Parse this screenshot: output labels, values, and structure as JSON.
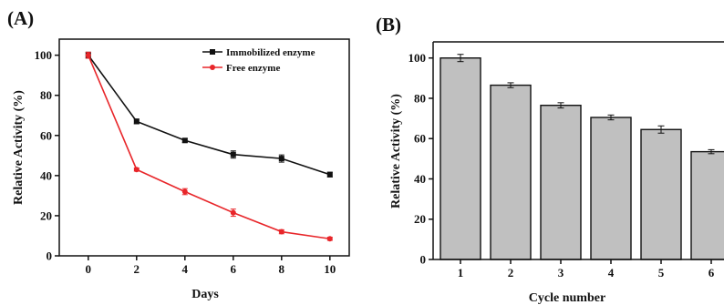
{
  "chart_data": [
    {
      "panel_label": "(A)",
      "type": "line",
      "xlabel": "Days",
      "ylabel": "Relative Activity (%)",
      "xlim": [
        -1.2,
        10.8
      ],
      "ylim": [
        0,
        108
      ],
      "xticks": [
        0,
        2,
        4,
        6,
        8,
        10
      ],
      "yticks": [
        0,
        20,
        40,
        60,
        80,
        100
      ],
      "legend_position": "top-right",
      "x": [
        0,
        2,
        4,
        6,
        8,
        10
      ],
      "series": [
        {
          "name": "Immobilized enzyme",
          "color": "#111111",
          "marker": "square",
          "values": [
            100,
            67,
            57.5,
            50.5,
            48.5,
            40.5
          ],
          "errors": [
            1.5,
            1.2,
            1.0,
            1.8,
            1.8,
            1.2
          ]
        },
        {
          "name": "Free enzyme",
          "color": "#e8262a",
          "marker": "circle",
          "values": [
            100,
            43,
            32,
            21.5,
            12,
            8.5
          ],
          "errors": [
            1.5,
            0.8,
            1.5,
            1.8,
            1.0,
            0.8
          ]
        }
      ]
    },
    {
      "panel_label": "(B)",
      "type": "bar",
      "xlabel": "Cycle number",
      "ylabel": "Relative Activity (%)",
      "ylim": [
        0,
        108
      ],
      "yticks": [
        0,
        20,
        40,
        60,
        80,
        100
      ],
      "categories": [
        "1",
        "2",
        "3",
        "4",
        "5",
        "6"
      ],
      "values": [
        100,
        86.5,
        76.5,
        70.5,
        64.5,
        53.5
      ],
      "errors": [
        1.8,
        1.2,
        1.3,
        1.2,
        1.8,
        1.0
      ],
      "bar_color": "#c0c0c0"
    }
  ]
}
